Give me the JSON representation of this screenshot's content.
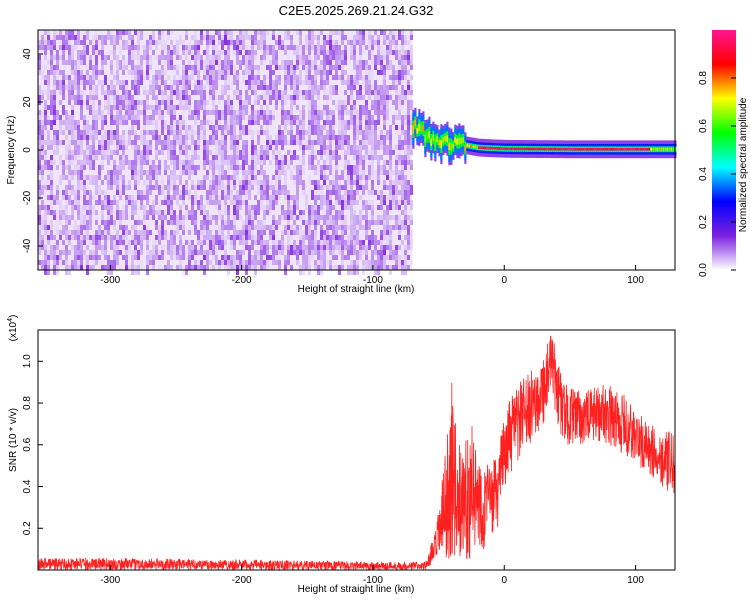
{
  "title": "C2E5.2025.269.21.24.G32",
  "chart_data": [
    {
      "type": "heatmap",
      "xlabel": "Height of straight line (km)",
      "ylabel": "Frequency (Hz)",
      "xlim": [
        -355,
        130
      ],
      "ylim": [
        -50,
        50
      ],
      "xticks": [
        -300,
        -200,
        -100,
        0,
        100
      ],
      "yticks": [
        -40,
        -20,
        0,
        20,
        40
      ],
      "noise_region_x": [
        -355,
        -70
      ],
      "signal": {
        "x_start": -70,
        "x_end": 130,
        "center_freq": [
          {
            "x": -70,
            "y": 10
          },
          {
            "x": -60,
            "y": 6
          },
          {
            "x": -50,
            "y": 4
          },
          {
            "x": -40,
            "y": 3
          },
          {
            "x": -30,
            "y": 2
          },
          {
            "x": -20,
            "y": 1
          },
          {
            "x": 0,
            "y": 0.5
          },
          {
            "x": 50,
            "y": 0.3
          },
          {
            "x": 130,
            "y": 0.3
          }
        ],
        "peak_amplitude_region_x": [
          -20,
          110
        ]
      },
      "colorbar": {
        "label": "Normalized spectral amplitude",
        "range": [
          0,
          1
        ],
        "ticks": [
          0.0,
          0.2,
          0.4,
          0.6,
          0.8
        ],
        "colors": [
          "#ffffff",
          "#7b1fe0",
          "#0000ff",
          "#00ffff",
          "#00ff00",
          "#ffff00",
          "#ff0000",
          "#ff1493"
        ]
      },
      "grid": false
    },
    {
      "type": "line",
      "xlabel": "Height of straight line (km)",
      "ylabel": "SNR (10 * v/v)",
      "exponent_label": "(x10",
      "exponent_power": "4",
      "exponent_close": ")",
      "xlim": [
        -355,
        130
      ],
      "ylim": [
        0,
        1.15
      ],
      "xticks": [
        -300,
        -200,
        -100,
        0,
        100
      ],
      "yticks": [
        0.2,
        0.4,
        0.6,
        0.8,
        1.0
      ],
      "series": [
        {
          "color": "#ff2020",
          "envelope": [
            {
              "x": -355,
              "lo": 0.0,
              "hi": 0.06
            },
            {
              "x": -200,
              "lo": 0.0,
              "hi": 0.05
            },
            {
              "x": -100,
              "lo": 0.0,
              "hi": 0.04
            },
            {
              "x": -60,
              "lo": 0.0,
              "hi": 0.04
            },
            {
              "x": -52,
              "lo": 0.02,
              "hi": 0.2
            },
            {
              "x": -45,
              "lo": 0.05,
              "hi": 0.55
            },
            {
              "x": -40,
              "lo": 0.05,
              "hi": 0.9
            },
            {
              "x": -35,
              "lo": 0.05,
              "hi": 0.6
            },
            {
              "x": -25,
              "lo": 0.05,
              "hi": 0.7
            },
            {
              "x": -15,
              "lo": 0.1,
              "hi": 0.5
            },
            {
              "x": -5,
              "lo": 0.2,
              "hi": 0.55
            },
            {
              "x": 0,
              "lo": 0.4,
              "hi": 0.75
            },
            {
              "x": 10,
              "lo": 0.5,
              "hi": 0.9
            },
            {
              "x": 20,
              "lo": 0.6,
              "hi": 0.95
            },
            {
              "x": 30,
              "lo": 0.7,
              "hi": 1.05
            },
            {
              "x": 36,
              "lo": 0.8,
              "hi": 1.15
            },
            {
              "x": 45,
              "lo": 0.6,
              "hi": 0.9
            },
            {
              "x": 60,
              "lo": 0.6,
              "hi": 0.85
            },
            {
              "x": 75,
              "lo": 0.62,
              "hi": 0.9
            },
            {
              "x": 90,
              "lo": 0.55,
              "hi": 0.85
            },
            {
              "x": 110,
              "lo": 0.45,
              "hi": 0.7
            },
            {
              "x": 130,
              "lo": 0.35,
              "hi": 0.65
            }
          ]
        }
      ],
      "grid": false
    }
  ]
}
